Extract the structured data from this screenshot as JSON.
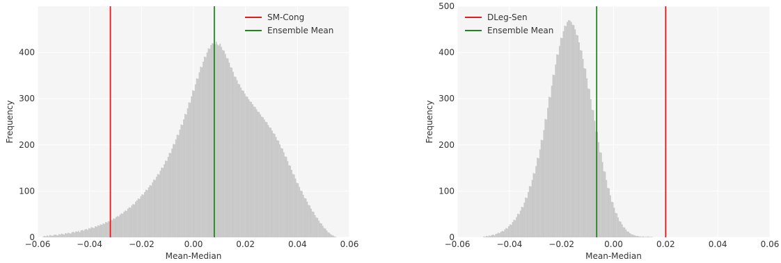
{
  "chart_data": [
    {
      "type": "bar",
      "subtype": "histogram",
      "title": "",
      "xlabel": "Mean-Median",
      "ylabel": "Frequency",
      "xlim": [
        -0.06,
        0.06
      ],
      "ylim": [
        0,
        500
      ],
      "xticks": [
        -0.06,
        -0.04,
        -0.02,
        0.0,
        0.02,
        0.04,
        0.06
      ],
      "xtick_labels": [
        "−0.06",
        "−0.04",
        "−0.02",
        "0.00",
        "0.02",
        "0.04",
        "0.06"
      ],
      "yticks": [
        0,
        100,
        200,
        300,
        400
      ],
      "ytick_labels": [
        "0",
        "100",
        "200",
        "300",
        "400"
      ],
      "grid": true,
      "legend_position": "top-right",
      "hist_color": "#c8c8c8",
      "bin_width": 0.0005,
      "bin_start": -0.058,
      "frequencies": [
        2,
        3,
        2,
        4,
        2,
        5,
        4,
        3,
        5,
        6,
        5,
        4,
        7,
        6,
        8,
        7,
        6,
        9,
        8,
        10,
        9,
        8,
        11,
        12,
        10,
        13,
        12,
        14,
        11,
        15,
        16,
        14,
        17,
        18,
        16,
        20,
        19,
        22,
        21,
        20,
        24,
        23,
        26,
        25,
        28,
        27,
        30,
        29,
        33,
        32,
        35,
        34,
        38,
        37,
        41,
        40,
        44,
        46,
        45,
        49,
        52,
        51,
        55,
        58,
        57,
        62,
        65,
        64,
        69,
        72,
        71,
        77,
        80,
        84,
        83,
        89,
        93,
        92,
        98,
        103,
        102,
        108,
        113,
        112,
        119,
        125,
        124,
        131,
        137,
        136,
        144,
        151,
        150,
        158,
        166,
        165,
        174,
        183,
        182,
        192,
        202,
        201,
        212,
        222,
        221,
        233,
        244,
        243,
        255,
        267,
        266,
        279,
        292,
        291,
        305,
        318,
        317,
        331,
        344,
        343,
        357,
        369,
        368,
        380,
        391,
        390,
        400,
        409,
        408,
        416,
        420,
        419,
        418,
        423,
        417,
        415,
        419,
        412,
        405,
        404,
        397,
        388,
        387,
        378,
        368,
        367,
        358,
        348,
        347,
        340,
        332,
        331,
        324,
        318,
        317,
        311,
        305,
        304,
        299,
        294,
        293,
        288,
        283,
        282,
        277,
        272,
        271,
        266,
        261,
        260,
        255,
        250,
        249,
        243,
        238,
        237,
        231,
        225,
        224,
        217,
        210,
        209,
        201,
        193,
        192,
        184,
        175,
        174,
        165,
        156,
        155,
        146,
        137,
        136,
        127,
        118,
        117,
        109,
        101,
        100,
        92,
        85,
        84,
        77,
        70,
        69,
        62,
        56,
        55,
        48,
        43,
        42,
        36,
        31,
        30,
        25,
        20,
        19,
        15,
        11,
        10,
        7,
        5,
        4,
        2,
        1
      ],
      "vlines": [
        {
          "name": "SM-Cong",
          "x": -0.032,
          "color": "#e41a1c"
        },
        {
          "name": "Ensemble Mean",
          "x": 0.008,
          "color": "#1a8a1a"
        }
      ],
      "series": [
        {
          "name": "SM-Cong",
          "color": "#e41a1c"
        },
        {
          "name": "Ensemble Mean",
          "color": "#1a8a1a"
        }
      ]
    },
    {
      "type": "bar",
      "subtype": "histogram",
      "title": "",
      "xlabel": "Mean-Median",
      "ylabel": "Frequency",
      "xlim": [
        -0.06,
        0.06
      ],
      "ylim": [
        0,
        500
      ],
      "xticks": [
        -0.06,
        -0.04,
        -0.02,
        0.0,
        0.02,
        0.04,
        0.06
      ],
      "xtick_labels": [
        "−0.06",
        "−0.04",
        "−0.02",
        "0.00",
        "0.02",
        "0.04",
        "0.06"
      ],
      "yticks": [
        0,
        100,
        200,
        300,
        400,
        500
      ],
      "ytick_labels": [
        "0",
        "100",
        "200",
        "300",
        "400",
        "500"
      ],
      "grid": true,
      "legend_position": "top-left",
      "hist_color": "#c8c8c8",
      "bin_width": 0.0005,
      "bin_start": -0.05,
      "frequencies": [
        2,
        1,
        3,
        2,
        4,
        3,
        5,
        6,
        4,
        7,
        8,
        10,
        9,
        12,
        14,
        13,
        17,
        20,
        19,
        24,
        28,
        27,
        33,
        38,
        37,
        44,
        51,
        50,
        58,
        66,
        65,
        75,
        86,
        85,
        98,
        111,
        110,
        124,
        139,
        138,
        154,
        172,
        171,
        190,
        211,
        210,
        232,
        256,
        255,
        280,
        304,
        303,
        328,
        352,
        351,
        374,
        396,
        395,
        414,
        432,
        431,
        446,
        458,
        457,
        466,
        470,
        469,
        466,
        460,
        459,
        450,
        438,
        437,
        422,
        405,
        404,
        386,
        366,
        365,
        344,
        322,
        321,
        299,
        276,
        275,
        252,
        229,
        228,
        206,
        184,
        183,
        163,
        143,
        142,
        124,
        107,
        106,
        91,
        77,
        76,
        64,
        53,
        52,
        43,
        35,
        34,
        28,
        22,
        21,
        17,
        13,
        12,
        9,
        7,
        6,
        5,
        4,
        3,
        3,
        2,
        2,
        1,
        2,
        1,
        1,
        1,
        2,
        1,
        1,
        1
      ],
      "vlines": [
        {
          "name": "DLeg-Sen",
          "x": 0.02,
          "color": "#e41a1c"
        },
        {
          "name": "Ensemble Mean",
          "x": -0.0065,
          "color": "#1a8a1a"
        }
      ],
      "series": [
        {
          "name": "DLeg-Sen",
          "color": "#e41a1c"
        },
        {
          "name": "Ensemble Mean",
          "color": "#1a8a1a"
        }
      ]
    }
  ]
}
